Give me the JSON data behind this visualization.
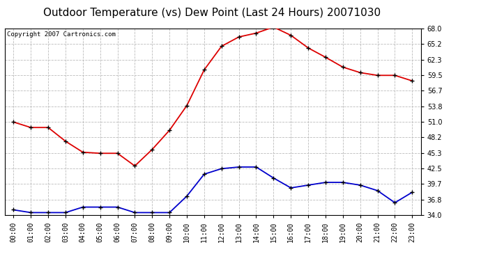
{
  "title": "Outdoor Temperature (vs) Dew Point (Last 24 Hours) 20071030",
  "copyright": "Copyright 2007 Cartronics.com",
  "hours": [
    "00:00",
    "01:00",
    "02:00",
    "03:00",
    "04:00",
    "05:00",
    "06:00",
    "07:00",
    "08:00",
    "09:00",
    "10:00",
    "11:00",
    "12:00",
    "13:00",
    "14:00",
    "15:00",
    "16:00",
    "17:00",
    "18:00",
    "19:00",
    "20:00",
    "21:00",
    "22:00",
    "23:00"
  ],
  "temp": [
    51.0,
    50.0,
    50.0,
    47.5,
    45.5,
    45.3,
    45.3,
    43.0,
    46.0,
    49.5,
    54.0,
    60.5,
    64.8,
    66.5,
    67.2,
    68.3,
    66.8,
    64.5,
    62.8,
    61.0,
    60.0,
    59.5,
    59.5,
    58.5
  ],
  "dew": [
    35.0,
    34.5,
    34.5,
    34.5,
    35.5,
    35.5,
    35.5,
    34.5,
    34.5,
    34.5,
    37.5,
    41.5,
    42.5,
    42.8,
    42.8,
    40.8,
    39.0,
    39.5,
    40.0,
    40.0,
    39.5,
    38.5,
    36.3,
    38.2
  ],
  "temp_color": "#dd0000",
  "dew_color": "#0000cc",
  "marker_color": "#000000",
  "bg_color": "#ffffff",
  "grid_color": "#bbbbbb",
  "yticks": [
    34.0,
    36.8,
    39.7,
    42.5,
    45.3,
    48.2,
    51.0,
    53.8,
    56.7,
    59.5,
    62.3,
    65.2,
    68.0
  ],
  "ymin": 34.0,
  "ymax": 68.0,
  "title_fontsize": 11,
  "tick_fontsize": 7,
  "copyright_fontsize": 6.5
}
